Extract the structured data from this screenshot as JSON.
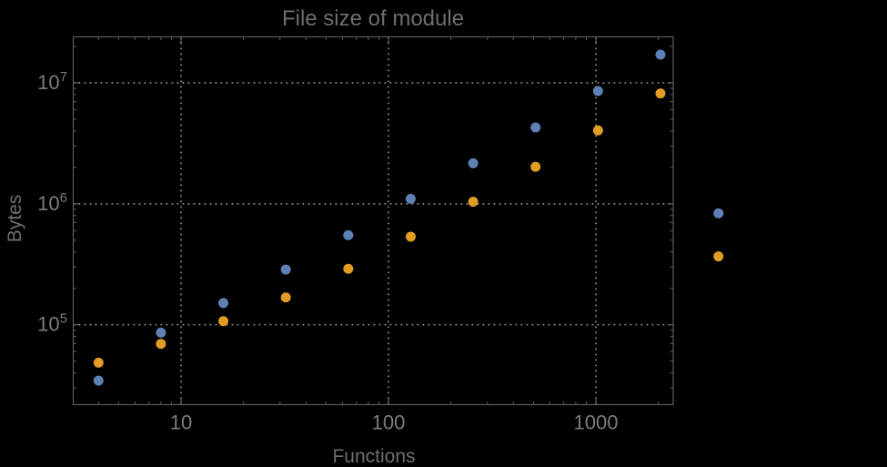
{
  "chart_data": {
    "type": "scatter",
    "title": "File size of module",
    "xlabel": "Functions",
    "ylabel": "Bytes",
    "x_scale": "log",
    "y_scale": "log",
    "xlim": [
      3.05,
      2370
    ],
    "ylim": [
      21800,
      24100000
    ],
    "grid": "dotted lines at decade ticks only",
    "legend": "none",
    "clipping": false,
    "x_ticks": [
      {
        "value": 10,
        "label": "10"
      },
      {
        "value": 100,
        "label": "100"
      },
      {
        "value": 1000,
        "label": "1000"
      }
    ],
    "y_ticks": [
      {
        "value": 100000,
        "mantissa": "10",
        "exponent": "5"
      },
      {
        "value": 1000000,
        "mantissa": "10",
        "exponent": "6"
      },
      {
        "value": 10000000,
        "mantissa": "10",
        "exponent": "7"
      }
    ],
    "series": [
      {
        "name": "blue",
        "color": "#5E81B5",
        "points": [
          [
            4,
            34500
          ],
          [
            8,
            86000
          ],
          [
            16,
            151000
          ],
          [
            32,
            286000
          ],
          [
            64,
            550000
          ],
          [
            128,
            1100000
          ],
          [
            256,
            2160000
          ],
          [
            512,
            4280000
          ],
          [
            1024,
            8560000
          ],
          [
            2048,
            17100000
          ],
          [
            3900,
            834000
          ]
        ]
      },
      {
        "name": "orange",
        "color": "#E19C24",
        "points": [
          [
            4,
            48600
          ],
          [
            8,
            69500
          ],
          [
            16,
            107000
          ],
          [
            32,
            168000
          ],
          [
            64,
            290000
          ],
          [
            128,
            535000
          ],
          [
            256,
            1040000
          ],
          [
            512,
            2020000
          ],
          [
            1024,
            4040000
          ],
          [
            2048,
            8170000
          ],
          [
            3900,
            367000
          ]
        ]
      }
    ]
  },
  "colors": {
    "background": "#000000",
    "frame": "#5c5c5c",
    "grid": "#8a8a8a",
    "title_text": "#6e6e6e",
    "axis_label_text": "#6e6e6e",
    "tick_label_text": "#7c7c7c"
  }
}
